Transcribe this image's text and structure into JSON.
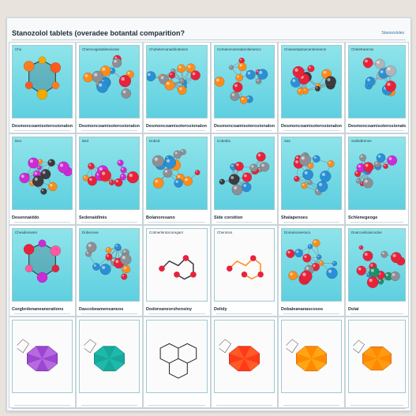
{
  "header": {
    "title": "Stanozolol tablets (overadee botantal comparition?",
    "corner_text": "Stanozololes"
  },
  "rows": [
    {
      "cells": [
        {
          "tag": "Chu",
          "label": "Desmoncoamisoterosionalon",
          "style": "ring",
          "colors": [
            "#ff7b1c",
            "#f2a900",
            "#ff5a1a"
          ]
        },
        {
          "tag": "Chemcogasialetosiorae",
          "label": "Desmoncoamisoterosionalon",
          "style": "cluster",
          "colors": [
            "#ff8c1a",
            "#e8223b",
            "#2a8fd6",
            "#8d8f94"
          ]
        },
        {
          "tag": "Chobetercanadolobanes",
          "label": "Desmoncoamisoterosionalon",
          "style": "cluster",
          "colors": [
            "#e8223b",
            "#2a8fd6",
            "#ff8c1a",
            "#8d8f94"
          ]
        },
        {
          "tag": "Cemanoroamadarolamenco",
          "label": "Desmoncoamisoterosionalon",
          "style": "cluster",
          "colors": [
            "#e8223b",
            "#ff8c1a",
            "#2a8fd6",
            "#8d8f94"
          ]
        },
        {
          "tag": "Cmanarapanacarolenanon",
          "label": "Desmoncoamisoterosionalon",
          "style": "cluster",
          "colors": [
            "#ff8c1a",
            "#e8223b",
            "#3b3b40",
            "#2a8fd6"
          ]
        },
        {
          "tag": "Chetetrarenss",
          "label": "Desmoncoamisoterosionalon",
          "style": "cluster",
          "colors": [
            "#ff8c1a",
            "#e8223b",
            "#2a8fd6",
            "#b0b4b8"
          ]
        }
      ]
    },
    {
      "cells": [
        {
          "tag": "Deo",
          "label": "Desennaiddo",
          "style": "cluster",
          "colors": [
            "#cc2bd6",
            "#ff8c1a",
            "#3b3b40"
          ]
        },
        {
          "tag": "Bed",
          "label": "Sedenaidlmis",
          "style": "cluster",
          "colors": [
            "#e8223b",
            "#ff8c1a",
            "#cc2bd6",
            "#8d8f94"
          ]
        },
        {
          "tag": "Dobed",
          "label": "Bolanoresano",
          "style": "cluster",
          "colors": [
            "#ff8c1a",
            "#2a8fd6",
            "#e8223b",
            "#8d8f94"
          ]
        },
        {
          "tag": "Cobebia",
          "label": "Side corsition",
          "style": "cluster",
          "colors": [
            "#e8223b",
            "#2a8fd6",
            "#8d8f94",
            "#3b3b40"
          ]
        },
        {
          "tag": "Sas",
          "label": "Shalapenoes",
          "style": "cluster",
          "colors": [
            "#e8223b",
            "#2a8fd6",
            "#ff8c1a",
            "#8d8f94"
          ]
        },
        {
          "tag": "Sobbdtrenne",
          "label": "Schlenegeoge",
          "style": "cluster",
          "colors": [
            "#e8223b",
            "#2a8fd6",
            "#cc2bd6",
            "#8d8f94"
          ]
        }
      ]
    },
    {
      "cells": [
        {
          "tag": "Cheadenseter",
          "label": "Corgbrdenaneanerations",
          "style": "ring",
          "colors": [
            "#e8223b",
            "#cc2bd6",
            "#ff5aa0"
          ]
        },
        {
          "tag": "Dobecnea",
          "label": "Dascobeamensaneos",
          "style": "cluster",
          "colors": [
            "#e8223b",
            "#ff8c1a",
            "#2a8fd6",
            "#8d8f94"
          ]
        },
        {
          "tag": "Cotmerlentoicoregars",
          "label": "Dodoreaneorshensiny",
          "style": "skeletal",
          "colors": [
            "#e8223b",
            "#3b3b40"
          ]
        },
        {
          "tag": "Chenmos",
          "label": "Delidy",
          "style": "skeletal",
          "colors": [
            "#e8223b",
            "#ff8c1a"
          ]
        },
        {
          "tag": "Domanoneeraco",
          "label": "Dobaleananascosos",
          "style": "cluster",
          "colors": [
            "#e8223b",
            "#2a8fd6",
            "#ff8c1a",
            "#8d8f94"
          ]
        },
        {
          "tag": "Doarcoetsoiecodoe",
          "label": "Dolai",
          "style": "cluster",
          "colors": [
            "#e8223b",
            "#2a8fd6",
            "#1e8f6a",
            "#8d8f94"
          ]
        }
      ]
    },
    {
      "cells": [
        {
          "tag": "",
          "label": "",
          "style": "hexa",
          "colors": [
            "#9c46d1",
            "#c07be6",
            "#6a2aa0"
          ]
        },
        {
          "tag": "",
          "label": "",
          "style": "hexa",
          "colors": [
            "#17a89c",
            "#23c0b4",
            "#0e7c72"
          ]
        },
        {
          "tag": "",
          "label": "",
          "style": "skeletal-big",
          "colors": [
            "#2a2a2a"
          ]
        },
        {
          "tag": "",
          "label": "",
          "style": "hexa",
          "colors": [
            "#ff3a1a",
            "#ff6a2a",
            "#c92010"
          ]
        },
        {
          "tag": "",
          "label": "",
          "style": "hexa",
          "colors": [
            "#ff8a00",
            "#ffb020",
            "#d06400"
          ]
        },
        {
          "tag": "",
          "label": "",
          "style": "hexa",
          "colors": [
            "#ff8a00",
            "#ffa31a",
            "#c65a00"
          ]
        }
      ]
    }
  ]
}
